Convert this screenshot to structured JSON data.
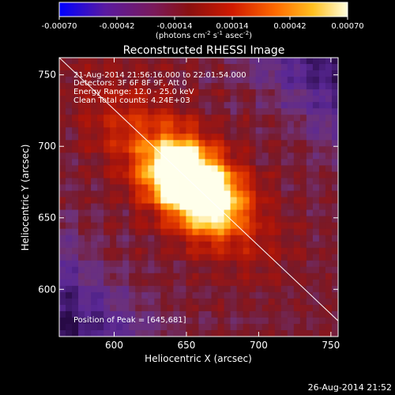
{
  "colorbar": {
    "tick_labels": [
      "-0.00070",
      "-0.00042",
      "-0.00014",
      "0.00014",
      "0.00042",
      "0.00070"
    ],
    "unit_label_pre": "(photons cm",
    "unit_label_exp1": "-2",
    "unit_label_mid": " s",
    "unit_label_exp2": "-1",
    "unit_label_mid2": " asec",
    "unit_label_exp3": "-2",
    "unit_label_post": ")",
    "range": [
      -0.0007,
      0.0007
    ]
  },
  "plot": {
    "title": "Reconstructed RHESSI Image",
    "xlabel": "Heliocentric X (arcsec)",
    "ylabel": "Heliocentric Y (arcsec)",
    "x_ticks": [
      "600",
      "650",
      "700",
      "750"
    ],
    "y_ticks": [
      "600",
      "650",
      "700",
      "750"
    ],
    "x_range": [
      562,
      755
    ],
    "y_range": [
      567,
      762
    ],
    "annotations": {
      "time": "21-Aug-2014 21:56:16.000 to 22:01:54.000",
      "detectors": "Detectors: 3F 6F 8F 9F, Att 0",
      "energy": "Energy Range: 12.0 - 25.0 keV",
      "method": "Clean     Total counts: 4.24E+03",
      "peak": "Position of Peak = [645,681]"
    },
    "peak_position": [
      645,
      681
    ],
    "limb_line": {
      "x1": 562,
      "y1": 762,
      "x2": 755,
      "y2": 578
    }
  },
  "footer": {
    "timestamp": "26-Aug-2014 21:52"
  }
}
